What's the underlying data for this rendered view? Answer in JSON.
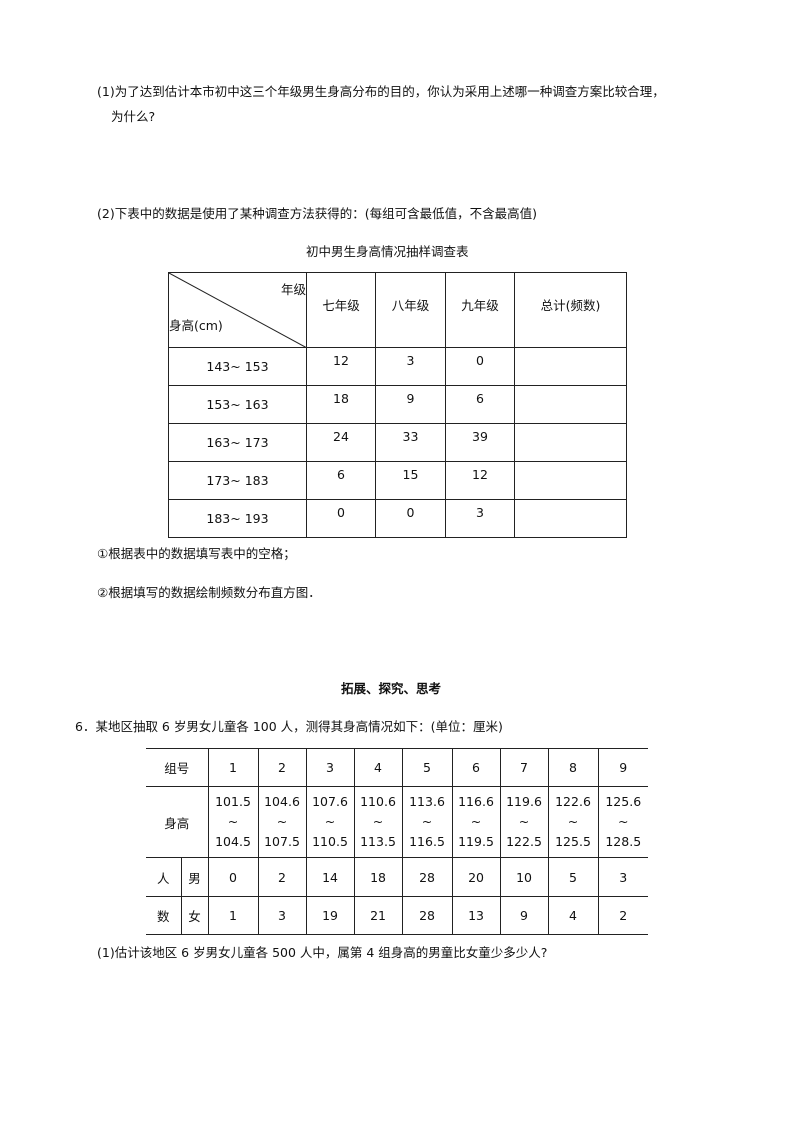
{
  "q1": {
    "line1": "(1)为了达到估计本市初中这三个年级男生身高分布的目的，你认为采用上述哪一种调查方案比较合理，",
    "line2": "为什么?"
  },
  "q2": {
    "text": "(2)下表中的数据是使用了某种调查方法获得的：(每组可含最低值，不含最高值)"
  },
  "table1": {
    "title": "初中男生身高情况抽样调查表",
    "corner_top": "年级",
    "corner_bottom": "身高(cm)",
    "headers": [
      "七年级",
      "八年级",
      "九年级",
      "总计(频数)"
    ],
    "rows": [
      {
        "range": "143~ 153",
        "values": [
          "12",
          "3",
          "0",
          ""
        ]
      },
      {
        "range": "153~ 163",
        "values": [
          "18",
          "9",
          "6",
          ""
        ]
      },
      {
        "range": "163~ 173",
        "values": [
          "24",
          "33",
          "39",
          ""
        ]
      },
      {
        "range": "173~ 183",
        "values": [
          "6",
          "15",
          "12",
          ""
        ]
      },
      {
        "range": "183~ 193",
        "values": [
          "0",
          "0",
          "3",
          ""
        ]
      }
    ]
  },
  "sub1": "①根据表中的数据填写表中的空格；",
  "sub2": "②根据填写的数据绘制频数分布直方图．",
  "section_title": "拓展、探究、思考",
  "q6": {
    "text": "6．某地区抽取 6 岁男女儿童各 100 人，测得其身高情况如下：(单位：厘米)"
  },
  "table2": {
    "group_label": "组号",
    "height_label": "身高",
    "people_label_1": "人",
    "people_label_2": "数",
    "male": "男",
    "female": "女",
    "groups": [
      "1",
      "2",
      "3",
      "4",
      "5",
      "6",
      "7",
      "8",
      "9"
    ],
    "heights": [
      [
        "101.5",
        "104.5"
      ],
      [
        "104.6",
        "107.5"
      ],
      [
        "107.6",
        "110.5"
      ],
      [
        "110.6",
        "113.5"
      ],
      [
        "113.6",
        "116.5"
      ],
      [
        "116.6",
        "119.5"
      ],
      [
        "119.6",
        "122.5"
      ],
      [
        "122.6",
        "125.5"
      ],
      [
        "125.6",
        "128.5"
      ]
    ],
    "tilde": "~",
    "male_counts": [
      "0",
      "2",
      "14",
      "18",
      "28",
      "20",
      "10",
      "5",
      "3"
    ],
    "female_counts": [
      "1",
      "3",
      "19",
      "21",
      "28",
      "13",
      "9",
      "4",
      "2"
    ]
  },
  "q6_1": "(1)估计该地区 6 岁男女儿童各 500 人中，属第 4 组身高的男童比女童少多少人?"
}
